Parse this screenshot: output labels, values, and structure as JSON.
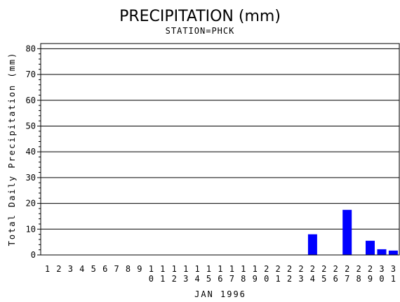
{
  "chart_data": {
    "type": "bar",
    "title": "PRECIPITATION (mm)",
    "subtitle": "STATION=PHCK",
    "xlabel": "JAN 1996",
    "ylabel": "Total Daily Precipitation (mm)",
    "ylim": [
      0,
      82
    ],
    "yticks": [
      0,
      10,
      20,
      30,
      40,
      50,
      60,
      70,
      80
    ],
    "grid": "horizontal",
    "bar_color": "#0000ff",
    "categories": [
      "1",
      "2",
      "3",
      "4",
      "5",
      "6",
      "7",
      "8",
      "9",
      "10",
      "11",
      "12",
      "13",
      "14",
      "15",
      "16",
      "17",
      "18",
      "19",
      "20",
      "21",
      "22",
      "23",
      "24",
      "25",
      "26",
      "27",
      "28",
      "29",
      "30",
      "31"
    ],
    "values": [
      0,
      0,
      0,
      0,
      0,
      0,
      0,
      0,
      0,
      0,
      0,
      0,
      0,
      0,
      0,
      0,
      0,
      0,
      0,
      0,
      0,
      0,
      0,
      8,
      0,
      0,
      17.5,
      0,
      5.5,
      2.2,
      1.7
    ]
  }
}
